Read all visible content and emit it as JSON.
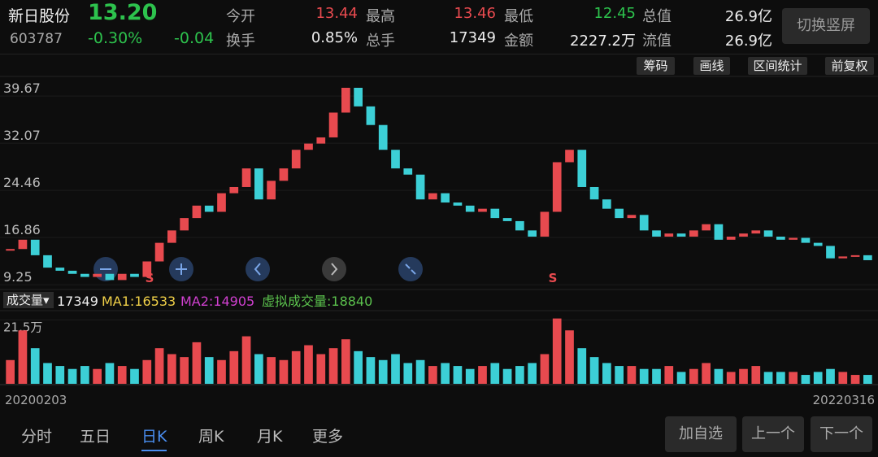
{
  "header": {
    "name": "新日股份",
    "price": "13.20",
    "code": "603787",
    "change_pct": "-0.30%",
    "change": "-0.04",
    "stats": [
      {
        "label": "今开",
        "value": "13.44"
      },
      {
        "label": "最高",
        "value": "13.46"
      },
      {
        "label": "最低",
        "value": "12.45"
      },
      {
        "label": "总值",
        "value": "26.9亿"
      },
      {
        "label": "换手",
        "value": "0.85%"
      },
      {
        "label": "总手",
        "value": "17349"
      },
      {
        "label": "金额",
        "value": "2227.2万"
      },
      {
        "label": "流值",
        "value": "26.9亿"
      }
    ],
    "toggle_button": "切换竖屏"
  },
  "toolbar": [
    "筹码",
    "画线",
    "区间统计",
    "前复权"
  ],
  "chart_data": {
    "type": "candlestick",
    "closes": [
      15,
      16.5,
      14,
      12,
      11.5,
      11,
      10.5,
      11,
      10,
      11,
      10.5,
      13,
      16,
      18,
      20,
      22,
      21,
      24,
      25,
      28,
      23,
      26,
      28,
      31,
      32,
      33,
      37,
      41,
      38,
      35,
      31,
      28,
      27,
      23,
      24,
      22.5,
      22,
      21,
      21.5,
      20,
      19.5,
      18,
      17,
      21,
      29,
      31,
      25,
      23,
      21.5,
      20,
      20.5,
      18,
      17,
      17.5,
      17,
      18,
      19,
      16.5,
      17,
      17.5,
      18,
      17,
      16.5,
      16.8,
      16,
      15.5,
      13.5,
      13.8,
      14,
      13.2
    ],
    "ylim": [
      9.0,
      42.7
    ],
    "yticks": [
      9.25,
      16.86,
      24.46,
      32.07,
      39.67
    ],
    "signals": [
      "S",
      "S"
    ]
  },
  "volume": {
    "selector": "成交量▾",
    "current": "17349",
    "ma1": "MA1:16533",
    "ma2": "MA2:14905",
    "virtual": "虚拟成交量:18840",
    "values": [
      8,
      18,
      12,
      7,
      6,
      5,
      6,
      5,
      7,
      6,
      5,
      8,
      12,
      10,
      9,
      14,
      9,
      8,
      11,
      16,
      10,
      9,
      8,
      11,
      13,
      10,
      12,
      15,
      11,
      9,
      8,
      10,
      7,
      8,
      6,
      7,
      6,
      5,
      6,
      7,
      5,
      6,
      7,
      10,
      22,
      18,
      12,
      9,
      7,
      6,
      6,
      5,
      5,
      6,
      4,
      5,
      7,
      5,
      4,
      5,
      6,
      4,
      4,
      4,
      3,
      4,
      5,
      4,
      3,
      3
    ],
    "ylim": [
      0,
      23
    ],
    "yticks": [
      {
        "value": 21.5,
        "label": "21.5万"
      }
    ]
  },
  "dates": [
    "20200203",
    "20220316"
  ],
  "tabs": [
    "分时",
    "五日",
    "日K",
    "周K",
    "月K",
    "更多"
  ],
  "buttons": [
    "加自选",
    "上一个",
    "下一个"
  ]
}
